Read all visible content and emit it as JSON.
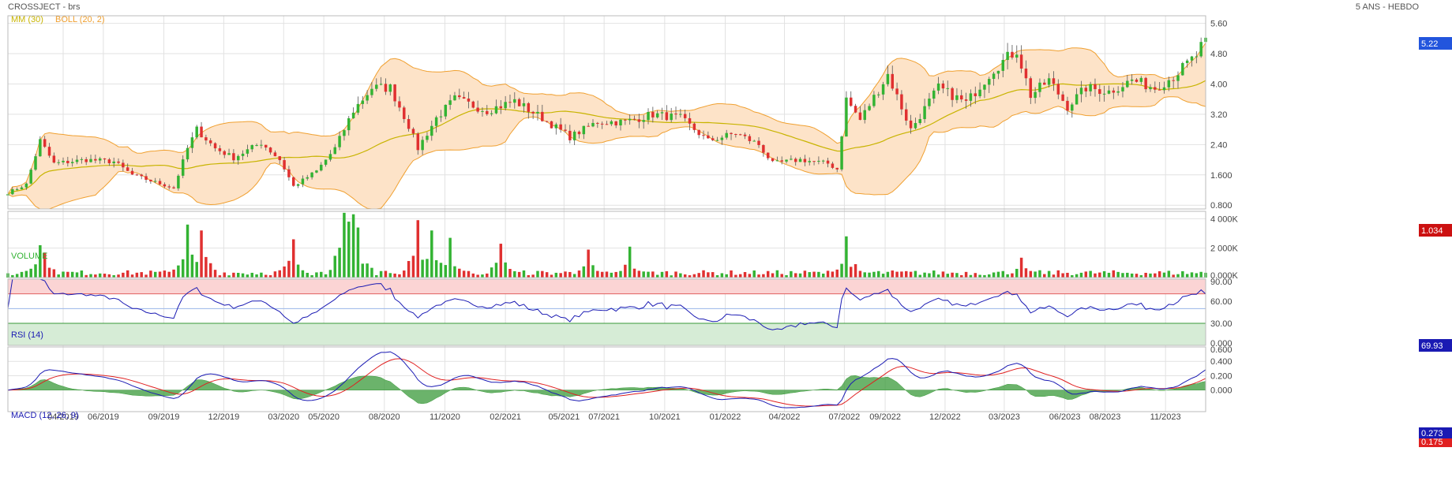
{
  "header": {
    "title": "CROSSJECT - brs",
    "period": "5 ANS - HEBDO"
  },
  "colors": {
    "up": "#33b333",
    "down": "#e03030",
    "ma": "#c8b400",
    "boll": "#f0a030",
    "boll_fill": "#fde3c8",
    "rsi": "#1a1ab3",
    "macd": "#1a1ab3",
    "signal": "#e02020",
    "hist": "#3a9a3a",
    "grid": "#e2e2e2",
    "volume_label": "#33b333"
  },
  "chart_data": [
    {
      "type": "candlestick",
      "panel": "price",
      "title": "",
      "legend": [
        {
          "name": "MM (30)"
        },
        {
          "name": "BOLL (20, 2)"
        }
      ],
      "ylim": [
        0.7,
        5.8
      ],
      "y_ticks": [
        "5.60",
        "4.80",
        "4.00",
        "3.20",
        "2.40",
        "1.600",
        "0.800"
      ],
      "y_tick_values": [
        5.6,
        4.8,
        4.0,
        3.2,
        2.4,
        1.6,
        0.8
      ],
      "last_value": "5.22",
      "low_marker": "1.034",
      "anchors": [
        [
          "2019-01-07",
          1.13
        ],
        [
          "2019-02-04",
          1.35
        ],
        [
          "2019-02-25",
          2.5
        ],
        [
          "2019-03-18",
          1.9
        ],
        [
          "2019-05-06",
          2.0
        ],
        [
          "2019-06-17",
          1.95
        ],
        [
          "2019-07-15",
          1.6
        ],
        [
          "2019-09-16",
          1.25
        ],
        [
          "2019-10-07",
          2.3
        ],
        [
          "2019-10-21",
          2.8
        ],
        [
          "2019-11-18",
          2.3
        ],
        [
          "2019-12-16",
          2.05
        ],
        [
          "2020-01-27",
          2.45
        ],
        [
          "2020-02-24",
          2.0
        ],
        [
          "2020-03-16",
          1.3
        ],
        [
          "2020-04-20",
          1.7
        ],
        [
          "2020-05-18",
          2.3
        ],
        [
          "2020-06-15",
          3.3
        ],
        [
          "2020-07-13",
          3.9
        ],
        [
          "2020-08-10",
          3.9
        ],
        [
          "2020-09-07",
          2.9
        ],
        [
          "2020-09-21",
          2.3
        ],
        [
          "2020-10-19",
          3.1
        ],
        [
          "2020-11-16",
          3.6
        ],
        [
          "2021-01-04",
          3.3
        ],
        [
          "2021-02-15",
          3.55
        ],
        [
          "2021-03-29",
          3.1
        ],
        [
          "2021-05-10",
          2.6
        ],
        [
          "2021-06-21",
          3.0
        ],
        [
          "2021-08-02",
          3.0
        ],
        [
          "2021-09-13",
          3.2
        ],
        [
          "2021-10-25",
          3.1
        ],
        [
          "2021-12-06",
          2.5
        ],
        [
          "2022-01-17",
          2.7
        ],
        [
          "2022-02-21",
          2.4
        ],
        [
          "2022-03-14",
          1.9
        ],
        [
          "2022-04-25",
          2.0
        ],
        [
          "2022-06-06",
          1.9
        ],
        [
          "2022-06-20",
          1.75
        ],
        [
          "2022-07-04",
          3.6
        ],
        [
          "2022-07-25",
          3.05
        ],
        [
          "2022-09-05",
          4.25
        ],
        [
          "2022-10-10",
          2.8
        ],
        [
          "2022-11-21",
          3.9
        ],
        [
          "2023-01-02",
          3.5
        ],
        [
          "2023-02-13",
          4.4
        ],
        [
          "2023-03-20",
          4.9
        ],
        [
          "2023-04-10",
          3.7
        ],
        [
          "2023-05-08",
          4.1
        ],
        [
          "2023-06-05",
          3.4
        ],
        [
          "2023-07-03",
          3.9
        ],
        [
          "2023-08-07",
          3.8
        ],
        [
          "2023-09-11",
          4.1
        ],
        [
          "2023-10-16",
          3.9
        ],
        [
          "2023-11-13",
          4.2
        ],
        [
          "2023-12-18",
          4.75
        ],
        [
          "2024-01-01",
          5.22
        ]
      ]
    },
    {
      "type": "bar",
      "panel": "volume",
      "title": "VOLUME",
      "ylim": [
        0,
        4500000
      ],
      "y_ticks": [
        "4 000K",
        "2 000K",
        "0.000K"
      ],
      "y_tick_values": [
        4000000,
        2000000,
        0
      ],
      "spikes": [
        [
          "2019-02-25",
          2200000
        ],
        [
          "2019-03-04",
          1700000
        ],
        [
          "2019-10-07",
          3600000
        ],
        [
          "2019-10-28",
          3200000
        ],
        [
          "2020-03-16",
          2600000
        ],
        [
          "2020-06-01",
          4400000
        ],
        [
          "2020-06-08",
          3800000
        ],
        [
          "2020-06-15",
          4300000
        ],
        [
          "2020-06-22",
          3400000
        ],
        [
          "2020-09-21",
          3900000
        ],
        [
          "2020-10-12",
          3200000
        ],
        [
          "2020-11-09",
          2700000
        ],
        [
          "2021-01-25",
          2300000
        ],
        [
          "2021-06-07",
          1900000
        ],
        [
          "2021-08-09",
          2100000
        ],
        [
          "2022-07-04",
          2800000
        ],
        [
          "2023-03-27",
          1350000
        ]
      ]
    },
    {
      "type": "line",
      "panel": "rsi",
      "title": "RSI (14)",
      "ylim": [
        0,
        90
      ],
      "y_ticks": [
        "90.00",
        "60.00",
        "30.00",
        "0.000"
      ],
      "y_tick_values": [
        90,
        60,
        30,
        0
      ],
      "overbought": 70,
      "oversold": 30,
      "last_value": "69.93"
    },
    {
      "type": "line",
      "panel": "macd",
      "title": "MACD (12, 26, 9)",
      "ylim": [
        -0.3,
        0.6
      ],
      "y_ticks": [
        "0.600",
        "0.400",
        "0.200",
        "0.000"
      ],
      "y_tick_values": [
        0.6,
        0.4,
        0.2,
        0.0
      ],
      "last_macd": "0.273",
      "last_signal": "0.175"
    }
  ],
  "x_axis": {
    "labels": [
      "04/2019",
      "06/2019",
      "09/2019",
      "12/2019",
      "03/2020",
      "05/2020",
      "08/2020",
      "11/2020",
      "02/2021",
      "05/2021",
      "07/2021",
      "10/2021",
      "01/2022",
      "04/2022",
      "07/2022",
      "09/2022",
      "12/2022",
      "03/2023",
      "06/2023",
      "08/2023",
      "11/2023"
    ],
    "dates": [
      "2019-04-01",
      "2019-06-01",
      "2019-09-01",
      "2019-12-01",
      "2020-03-01",
      "2020-05-01",
      "2020-08-01",
      "2020-11-01",
      "2021-02-01",
      "2021-05-01",
      "2021-07-01",
      "2021-10-01",
      "2022-01-01",
      "2022-04-01",
      "2022-07-01",
      "2022-09-01",
      "2022-12-01",
      "2023-03-01",
      "2023-06-01",
      "2023-08-01",
      "2023-11-01"
    ],
    "start": "2019-01-07",
    "end": "2024-01-01"
  }
}
